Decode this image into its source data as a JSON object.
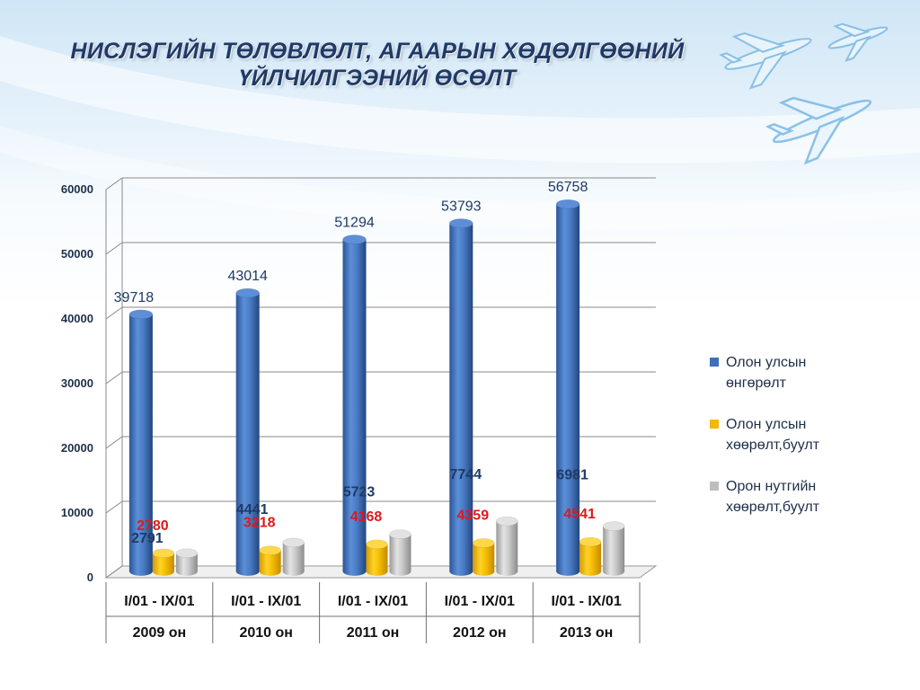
{
  "title_line1": "НИСЛЭГИЙН ТӨЛӨВЛӨЛТ, АГААРЫН ХӨДӨЛГӨӨНИЙ",
  "title_line2": "ҮЙЛЧИЛГЭЭНИЙ ӨСӨЛТ",
  "chart_data": {
    "type": "bar",
    "title": "НИСЛЭГИЙН ТӨЛӨВЛӨЛТ, АГААРЫН ХӨДӨЛГӨӨНИЙ ҮЙЛЧИЛГЭЭНИЙ ӨСӨЛТ",
    "categories": [
      "I/01 - IX/01",
      "I/01 - IX/01",
      "I/01 - IX/01",
      "I/01 - IX/01",
      "I/01 - IX/01"
    ],
    "category_sublabels": [
      "2009 он",
      "2010 он",
      "2011 он",
      "2012 он",
      "2013 он"
    ],
    "ylim": [
      0,
      60000
    ],
    "yticks": [
      0,
      10000,
      20000,
      30000,
      40000,
      50000,
      60000
    ],
    "grid": true,
    "legend_position": "right",
    "series": [
      {
        "name": "Олон улсын өнгөрөлт",
        "name_lines": [
          "Олон улсын",
          "өнгөрөлт"
        ],
        "color": "#3f6fb8",
        "label_color": "#1e3a66",
        "values": [
          39718,
          43014,
          51294,
          53793,
          56758
        ]
      },
      {
        "name": "Олон улсын хөөрөлт,буулт",
        "name_lines": [
          "Олон улсын",
          "хөөрөлт,буулт"
        ],
        "color": "#f2b800",
        "label_color": "#e0181b",
        "values": [
          2780,
          3218,
          4168,
          4359,
          4541
        ]
      },
      {
        "name": "Орон нутгийн хөөрөлт,буулт",
        "name_lines": [
          "Орон нутгийн",
          "хөөрөлт,буулт"
        ],
        "color": "#bdbdbd",
        "label_color": "#1e3a66",
        "values": [
          2791,
          4441,
          5723,
          7744,
          6981
        ]
      }
    ]
  }
}
